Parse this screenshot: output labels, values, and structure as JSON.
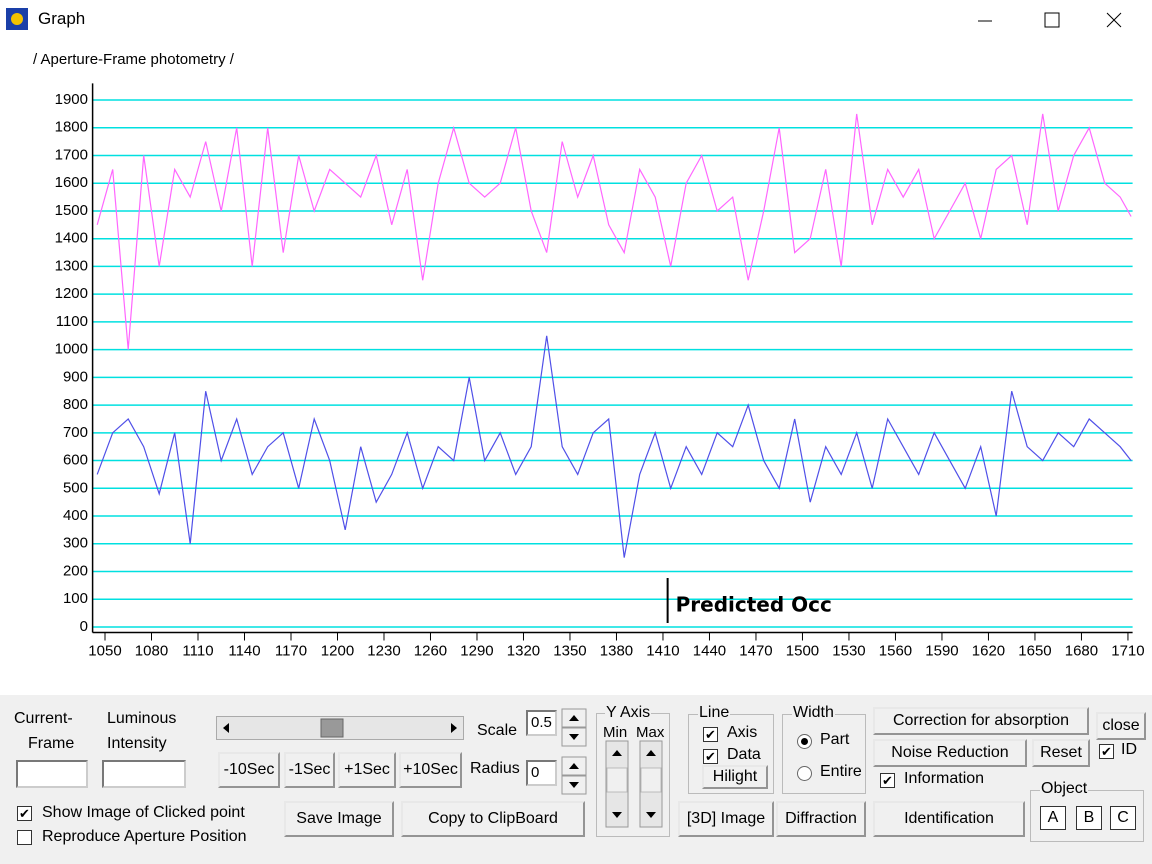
{
  "window": {
    "title": "Graph"
  },
  "chart_data": {
    "type": "line",
    "subtitle": "/ Aperture-Frame photometry /",
    "x": [
      1045,
      1055,
      1065,
      1075,
      1085,
      1095,
      1105,
      1115,
      1125,
      1135,
      1145,
      1155,
      1165,
      1175,
      1185,
      1195,
      1205,
      1215,
      1225,
      1235,
      1245,
      1255,
      1265,
      1275,
      1285,
      1295,
      1305,
      1315,
      1325,
      1335,
      1345,
      1355,
      1365,
      1375,
      1385,
      1395,
      1405,
      1415,
      1425,
      1435,
      1445,
      1455,
      1465,
      1475,
      1485,
      1495,
      1505,
      1515,
      1525,
      1535,
      1545,
      1555,
      1565,
      1575,
      1585,
      1595,
      1605,
      1615,
      1625,
      1635,
      1645,
      1655,
      1665,
      1675,
      1685,
      1695,
      1705,
      1712
    ],
    "series": [
      {
        "color": "#ff66ff",
        "values": [
          1450,
          1650,
          1000,
          1700,
          1300,
          1650,
          1550,
          1750,
          1500,
          1800,
          1300,
          1800,
          1350,
          1700,
          1500,
          1650,
          1600,
          1550,
          1700,
          1450,
          1650,
          1250,
          1600,
          1800,
          1600,
          1550,
          1600,
          1800,
          1500,
          1350,
          1750,
          1550,
          1700,
          1450,
          1350,
          1650,
          1550,
          1300,
          1600,
          1700,
          1500,
          1550,
          1250,
          1500,
          1800,
          1350,
          1400,
          1650,
          1300,
          1850,
          1450,
          1650,
          1550,
          1650,
          1400,
          1500,
          1600,
          1400,
          1650,
          1700,
          1450,
          1850,
          1500,
          1700,
          1800,
          1600,
          1550,
          1480
        ]
      },
      {
        "color": "#5050e8",
        "values": [
          550,
          700,
          750,
          650,
          480,
          700,
          300,
          850,
          600,
          750,
          550,
          650,
          700,
          500,
          750,
          600,
          350,
          650,
          450,
          550,
          700,
          500,
          650,
          600,
          900,
          600,
          700,
          550,
          650,
          1050,
          650,
          550,
          700,
          750,
          250,
          550,
          700,
          500,
          650,
          550,
          700,
          650,
          800,
          600,
          500,
          750,
          450,
          650,
          550,
          700,
          500,
          750,
          650,
          550,
          700,
          600,
          500,
          650,
          400,
          850,
          650,
          600,
          700,
          650,
          750,
          700,
          650,
          600
        ]
      }
    ],
    "xlim": [
      1042,
      1713
    ],
    "ylim": [
      -20,
      1960
    ],
    "xticks": [
      1050,
      1080,
      1110,
      1140,
      1170,
      1200,
      1230,
      1260,
      1290,
      1320,
      1350,
      1380,
      1410,
      1440,
      1470,
      1500,
      1530,
      1560,
      1590,
      1620,
      1650,
      1680,
      1710
    ],
    "yticks": [
      0,
      100,
      200,
      300,
      400,
      500,
      600,
      700,
      800,
      900,
      1000,
      1100,
      1200,
      1300,
      1400,
      1500,
      1600,
      1700,
      1800,
      1900
    ],
    "grid": true,
    "grid_color": "#00e0e0",
    "annotation": {
      "text": "Predicted Occ",
      "x": 1413
    }
  },
  "controls": {
    "current_frame": [
      "Current-",
      "Frame"
    ],
    "luminous_intensity": [
      "Luminous",
      "Intensity"
    ],
    "show_image": {
      "label": "Show Image of Clicked point",
      "checked": true
    },
    "reproduce": {
      "label": "Reproduce Aperture Position",
      "checked": false
    },
    "step_buttons": [
      "-10Sec",
      "-1Sec",
      "+1Sec",
      "+10Sec"
    ],
    "save_image": "Save Image",
    "copy": "Copy to ClipBoard",
    "scale": {
      "label": "Scale",
      "value": 0.5
    },
    "radius": {
      "label": "Radius",
      "value": 0
    },
    "y_axis": {
      "title": "Y Axis",
      "min": "Min",
      "max": "Max"
    },
    "line": {
      "title": "Line",
      "axis": {
        "label": "Axis",
        "checked": true
      },
      "data": {
        "label": "Data",
        "checked": true
      },
      "hilight": "Hilight"
    },
    "width": {
      "title": "Width",
      "part": {
        "label": "Part",
        "selected": true
      },
      "entire": {
        "label": "Entire",
        "selected": false
      }
    },
    "image3d": "[3D] Image",
    "diffraction": "Diffraction",
    "correction": "Correction for absorption",
    "noise": "Noise Reduction",
    "reset": "Reset",
    "close": "close",
    "id": {
      "label": "ID",
      "checked": true
    },
    "information": {
      "label": "Information",
      "checked": true
    },
    "identification": "Identification",
    "object": {
      "title": "Object",
      "buttons": [
        "A",
        "B",
        "C"
      ]
    }
  }
}
